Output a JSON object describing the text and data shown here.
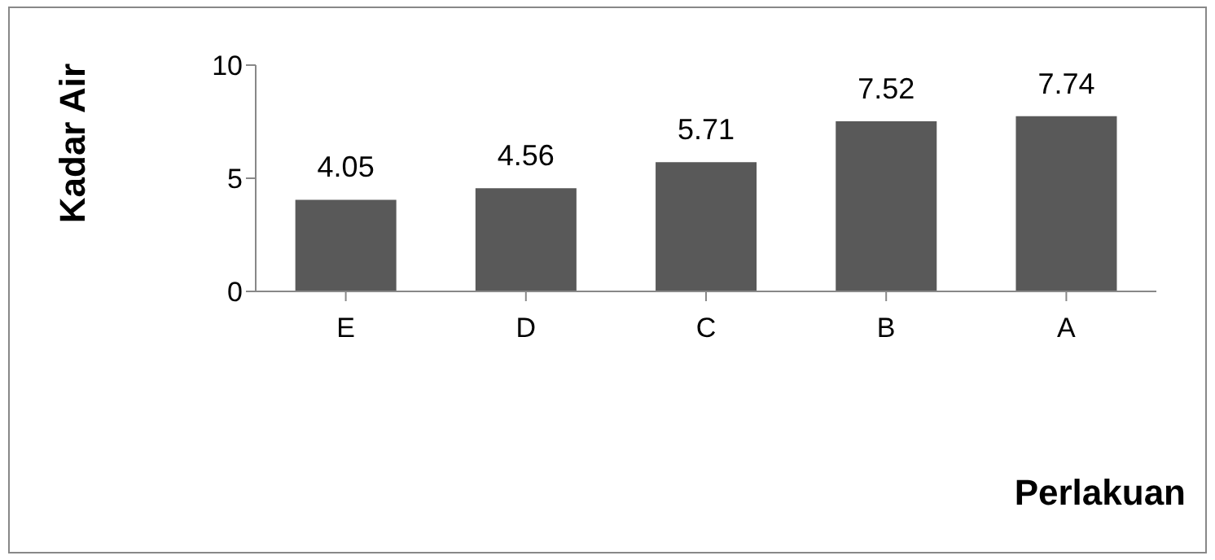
{
  "chart_data": {
    "type": "bar",
    "xlabel": "Perlakuan",
    "ylabel": "Kadar Air",
    "categories": [
      "E",
      "D",
      "C",
      "B",
      "A"
    ],
    "values": [
      4.05,
      4.56,
      5.71,
      7.52,
      7.74
    ],
    "color": "#595959",
    "data_labels": true,
    "ylim": [
      0,
      10
    ],
    "yticks": [
      0,
      5,
      10
    ],
    "grid": false
  }
}
